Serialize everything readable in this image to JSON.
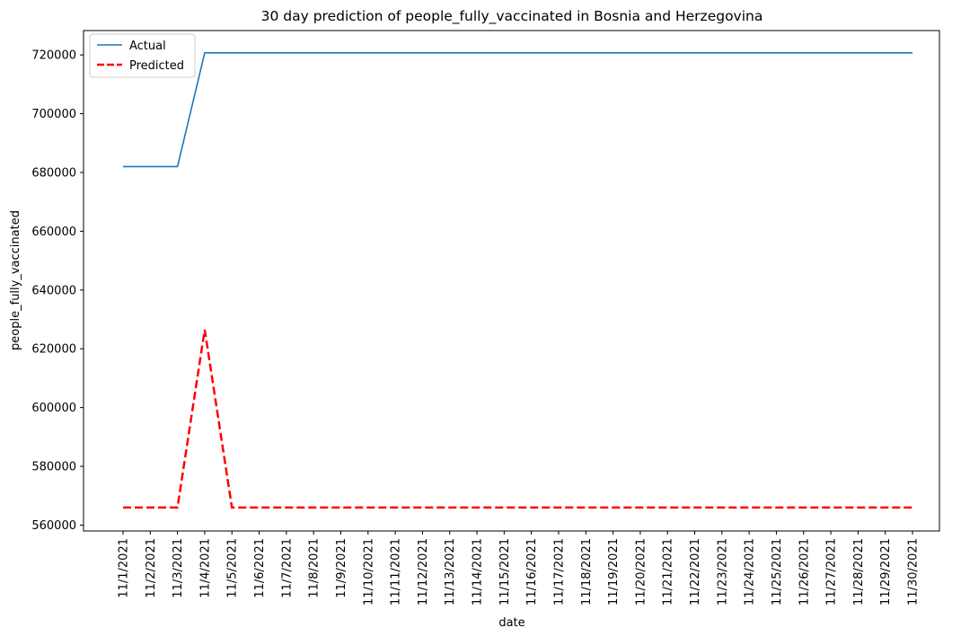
{
  "chart_data": {
    "type": "line",
    "title": "30 day prediction of people_fully_vaccinated in Bosnia and Herzegovina",
    "xlabel": "date",
    "ylabel": "people_fully_vaccinated",
    "categories": [
      "11/1/2021",
      "11/2/2021",
      "11/3/2021",
      "11/4/2021",
      "11/5/2021",
      "11/6/2021",
      "11/7/2021",
      "11/8/2021",
      "11/9/2021",
      "11/10/2021",
      "11/11/2021",
      "11/12/2021",
      "11/13/2021",
      "11/14/2021",
      "11/15/2021",
      "11/16/2021",
      "11/17/2021",
      "11/18/2021",
      "11/19/2021",
      "11/20/2021",
      "11/21/2021",
      "11/22/2021",
      "11/23/2021",
      "11/24/2021",
      "11/25/2021",
      "11/26/2021",
      "11/27/2021",
      "11/28/2021",
      "11/29/2021",
      "11/30/2021"
    ],
    "y_ticks": [
      560000,
      580000,
      600000,
      620000,
      640000,
      660000,
      680000,
      700000,
      720000
    ],
    "y_tick_labels": [
      "560000",
      "580000",
      "600000",
      "620000",
      "640000",
      "660000",
      "680000",
      "700000",
      "720000"
    ],
    "ylim": [
      558000,
      728300
    ],
    "grid": false,
    "legend_position": "upper-left",
    "series": [
      {
        "name": "Actual",
        "color": "#1f77b4",
        "style": "solid",
        "values": [
          682000,
          682000,
          682000,
          720700,
          720700,
          720700,
          720700,
          720700,
          720700,
          720700,
          720700,
          720700,
          720700,
          720700,
          720700,
          720700,
          720700,
          720700,
          720700,
          720700,
          720700,
          720700,
          720700,
          720700,
          720700,
          720700,
          720700,
          720700,
          720700,
          720700
        ]
      },
      {
        "name": "Predicted",
        "color": "#ff0000",
        "style": "dashed",
        "values": [
          566000,
          566000,
          566000,
          626500,
          566000,
          566000,
          566000,
          566000,
          566000,
          566000,
          566000,
          566000,
          566000,
          566000,
          566000,
          566000,
          566000,
          566000,
          566000,
          566000,
          566000,
          566000,
          566000,
          566000,
          566000,
          566000,
          566000,
          566000,
          566000,
          566000
        ]
      }
    ]
  }
}
